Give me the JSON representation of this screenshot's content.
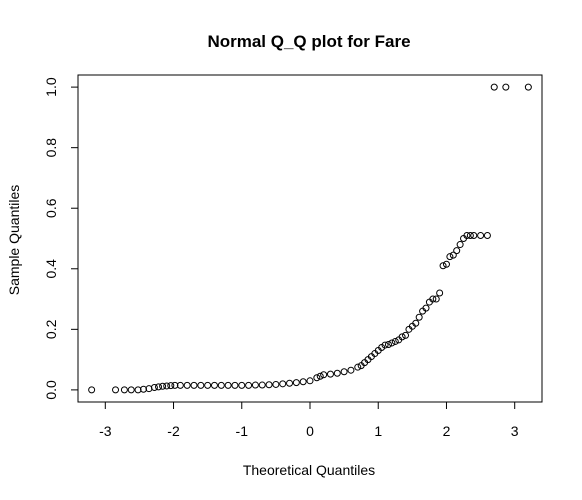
{
  "chart_data": {
    "type": "scatter",
    "title": "Normal Q_Q plot for Fare",
    "xlabel": "Theoretical Quantiles",
    "ylabel": "Sample Quantiles",
    "xlim": [
      -3.4,
      3.4
    ],
    "ylim": [
      -0.04,
      1.04
    ],
    "grid": false,
    "x_ticks": [
      -3,
      -2,
      -1,
      0,
      1,
      2,
      3
    ],
    "x_tick_labels": [
      "-3",
      "-2",
      "-1",
      "0",
      "1",
      "2",
      "3"
    ],
    "y_ticks": [
      0.0,
      0.2,
      0.4,
      0.6,
      0.8,
      1.0
    ],
    "y_tick_labels": [
      "0.0",
      "0.2",
      "0.4",
      "0.6",
      "0.8",
      "1.0"
    ],
    "series": [
      {
        "x": [
          -3.2,
          -2.85,
          -2.72,
          -2.62,
          -2.52,
          -2.44,
          -2.36,
          -2.28,
          -2.22,
          -2.16,
          -2.1,
          -2.04,
          -1.98,
          -1.9,
          -1.8,
          -1.7,
          -1.6,
          -1.5,
          -1.4,
          -1.3,
          -1.2,
          -1.1,
          -1.0,
          -0.9,
          -0.8,
          -0.7,
          -0.6,
          -0.5,
          -0.4,
          -0.3,
          -0.2,
          -0.1,
          0.0,
          0.1,
          0.15,
          0.2,
          0.3,
          0.4,
          0.5,
          0.6,
          0.7,
          0.75,
          0.8,
          0.85,
          0.9,
          0.95,
          1.0,
          1.05,
          1.1,
          1.15,
          1.2,
          1.25,
          1.3,
          1.35,
          1.4,
          1.45,
          1.5,
          1.55,
          1.6,
          1.65,
          1.7,
          1.75,
          1.8,
          1.85,
          1.9,
          1.95,
          2.0,
          2.05,
          2.1,
          2.15,
          2.2,
          2.25,
          2.3,
          2.35,
          2.4,
          2.5,
          2.6,
          2.7,
          2.87,
          3.2
        ],
        "y": [
          0.0,
          0.0,
          0.0,
          0.0,
          0.0,
          0.002,
          0.004,
          0.008,
          0.01,
          0.012,
          0.013,
          0.014,
          0.015,
          0.015,
          0.015,
          0.015,
          0.015,
          0.015,
          0.015,
          0.015,
          0.015,
          0.015,
          0.015,
          0.015,
          0.016,
          0.016,
          0.017,
          0.018,
          0.02,
          0.022,
          0.024,
          0.027,
          0.03,
          0.04,
          0.045,
          0.05,
          0.052,
          0.055,
          0.06,
          0.065,
          0.075,
          0.08,
          0.09,
          0.1,
          0.11,
          0.12,
          0.13,
          0.14,
          0.148,
          0.15,
          0.155,
          0.16,
          0.165,
          0.175,
          0.18,
          0.2,
          0.21,
          0.22,
          0.24,
          0.26,
          0.27,
          0.29,
          0.3,
          0.3,
          0.32,
          0.41,
          0.415,
          0.44,
          0.445,
          0.46,
          0.48,
          0.5,
          0.51,
          0.51,
          0.51,
          0.51,
          0.51,
          1.0,
          1.0,
          1.0
        ]
      }
    ]
  }
}
